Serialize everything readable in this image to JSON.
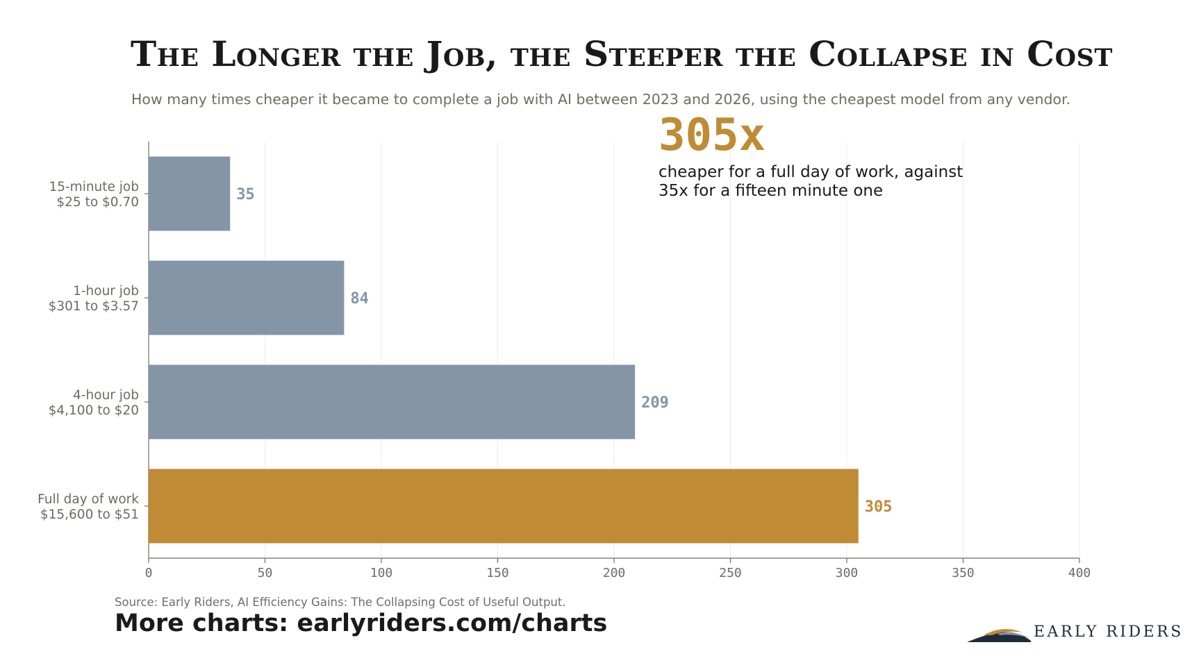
{
  "chart_data": {
    "type": "bar",
    "orientation": "horizontal",
    "title": "The Longer the Job, the Steeper the Collapse in Cost",
    "subtitle": "How many times cheaper it became to complete a job with AI between 2023 and 2026, using the cheapest model from any vendor.",
    "categories": [
      {
        "name": "15-minute job",
        "detail": "$25 to $0.70"
      },
      {
        "name": "1-hour job",
        "detail": "$301 to $3.57"
      },
      {
        "name": "4-hour job",
        "detail": "$4,100 to $20"
      },
      {
        "name": "Full day of work",
        "detail": "$15,600 to $51"
      }
    ],
    "values": [
      35,
      84,
      209,
      305
    ],
    "value_labels": [
      "35",
      "84",
      "209",
      "305"
    ],
    "highlight_index": 3,
    "xlim": [
      0,
      400
    ],
    "xticks": [
      0,
      50,
      100,
      150,
      200,
      250,
      300,
      350,
      400
    ],
    "xtick_labels": [
      "0",
      "50",
      "100",
      "150",
      "200",
      "250",
      "300",
      "350",
      "400"
    ],
    "grid": "vertical",
    "colors": {
      "bar": "#8595a8",
      "highlight": "#bf8b34",
      "grid": "#ececec",
      "axis": "#6e6e5f"
    }
  },
  "callout": {
    "big": "305x",
    "text": "cheaper for a full day of work, against 35x for a fifteen minute one"
  },
  "footer": {
    "source": "Source: Early Riders, AI Efficiency Gains: The Collapsing Cost of Useful Output.",
    "more": "More charts: earlyriders.com/charts",
    "brand": "EARLY RIDERS"
  }
}
